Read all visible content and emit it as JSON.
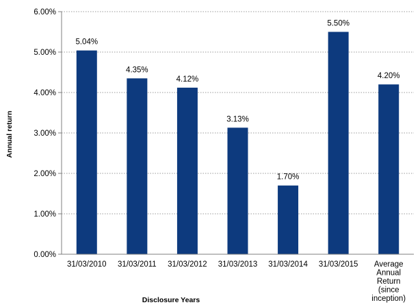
{
  "chart_data": {
    "type": "bar",
    "title": "",
    "xlabel": "Disclosure Years",
    "ylabel": "Annual return",
    "categories": [
      "31/03/2010",
      "31/03/2011",
      "31/03/2012",
      "31/03/2013",
      "31/03/2014",
      "31/03/2015",
      [
        "Average",
        "Annual",
        "Return",
        "(since",
        "inception)"
      ]
    ],
    "values": [
      5.04,
      4.35,
      4.12,
      3.13,
      1.7,
      5.5,
      4.2
    ],
    "data_labels": [
      "5.04%",
      "4.35%",
      "4.12%",
      "3.13%",
      "1.70%",
      "5.50%",
      "4.20%"
    ],
    "y_ticks": [
      0,
      1,
      2,
      3,
      4,
      5,
      6
    ],
    "y_tick_labels": [
      "0.00%",
      "1.00%",
      "2.00%",
      "3.00%",
      "4.00%",
      "5.00%",
      "6.00%"
    ],
    "ylim": [
      0,
      6
    ],
    "grid": "horizontal dotted",
    "legend": "none",
    "colors": {
      "bar": "#0d3a7e",
      "grid": "#9a9a9a",
      "axis": "#7f7f7f"
    }
  }
}
